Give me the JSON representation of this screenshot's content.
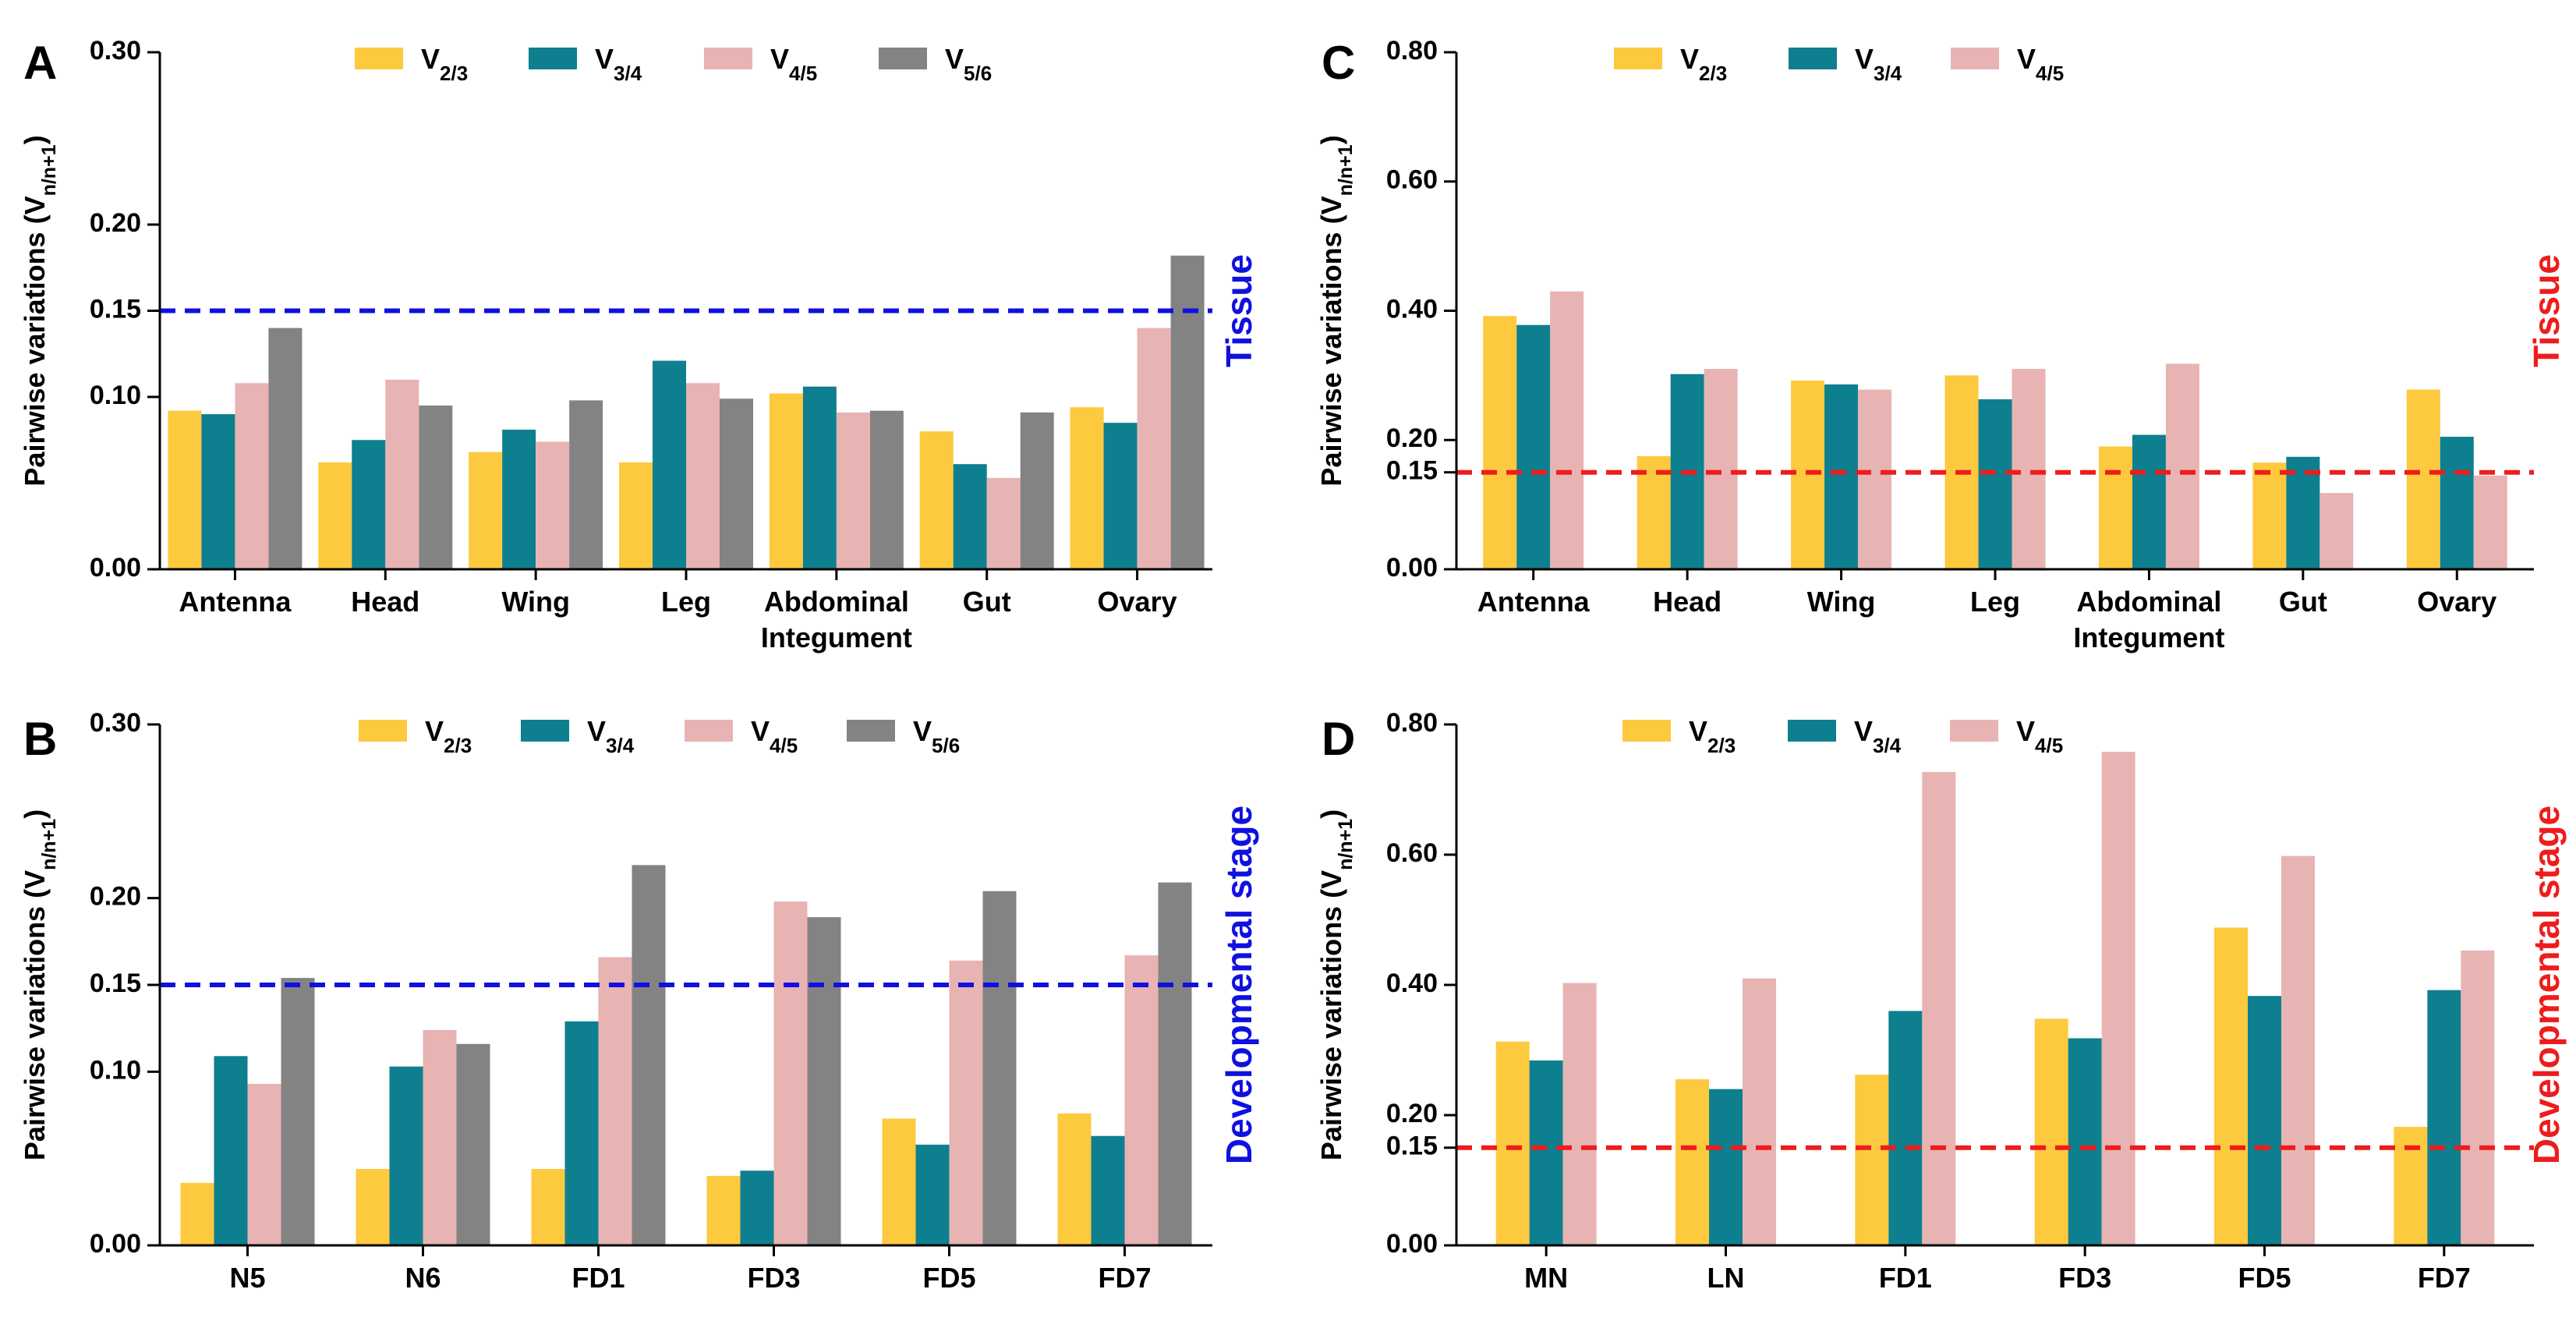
{
  "colors": {
    "V2_3": "#FDC93E",
    "V3_4": "#0E7F8F",
    "V4_5": "#E7B4B3",
    "V5_6": "#838383",
    "axis": "#000000",
    "blue_line": "#1010E0",
    "red_line": "#EE1C1C"
  },
  "series_names": {
    "V2_3": [
      "V",
      "2/3"
    ],
    "V3_4": [
      "V",
      "3/4"
    ],
    "V4_5": [
      "V",
      "4/5"
    ],
    "V5_6": [
      "V",
      "5/6"
    ]
  },
  "ylabel": [
    "Pairwise variations (V",
    "n/n+1",
    ")"
  ],
  "chart_data": [
    {
      "panel": "A",
      "type": "bar",
      "title": "",
      "right_label": "Tissue",
      "ylabel": "Pairwise variations (Vn/n+1)",
      "ylim": [
        0,
        0.3
      ],
      "yticks": [
        "0.00",
        "0.10",
        "0.15",
        "0.20",
        "0.30"
      ],
      "threshold": 0.15,
      "categories": [
        [
          "Antenna"
        ],
        [
          "Head"
        ],
        [
          "Wing"
        ],
        [
          "Leg"
        ],
        [
          "Abdominal",
          "Integument"
        ],
        [
          "Gut"
        ],
        [
          "Ovary"
        ]
      ],
      "series": [
        {
          "key": "V2_3",
          "name": "V2/3",
          "values": [
            0.092,
            0.062,
            0.068,
            0.062,
            0.102,
            0.08,
            0.094
          ]
        },
        {
          "key": "V3_4",
          "name": "V3/4",
          "values": [
            0.09,
            0.075,
            0.081,
            0.121,
            0.106,
            0.061,
            0.085
          ]
        },
        {
          "key": "V4_5",
          "name": "V4/5",
          "values": [
            0.108,
            0.11,
            0.074,
            0.108,
            0.091,
            0.053,
            0.14
          ]
        },
        {
          "key": "V5_6",
          "name": "V5/6",
          "values": [
            0.14,
            0.095,
            0.098,
            0.099,
            0.092,
            0.091,
            0.182
          ]
        }
      ]
    },
    {
      "panel": "B",
      "type": "bar",
      "title": "",
      "right_label": "Developmental stage",
      "ylabel": "Pairwise variations (Vn/n+1)",
      "ylim": [
        0,
        0.3
      ],
      "yticks": [
        "0.00",
        "0.10",
        "0.15",
        "0.20",
        "0.30"
      ],
      "threshold": 0.15,
      "categories": [
        [
          "N5"
        ],
        [
          "N6"
        ],
        [
          "FD1"
        ],
        [
          "FD3"
        ],
        [
          "FD5"
        ],
        [
          "FD7"
        ]
      ],
      "series": [
        {
          "key": "V2_3",
          "name": "V2/3",
          "values": [
            0.036,
            0.044,
            0.044,
            0.04,
            0.073,
            0.076
          ]
        },
        {
          "key": "V3_4",
          "name": "V3/4",
          "values": [
            0.109,
            0.103,
            0.129,
            0.043,
            0.058,
            0.063
          ]
        },
        {
          "key": "V4_5",
          "name": "V4/5",
          "values": [
            0.093,
            0.124,
            0.166,
            0.198,
            0.164,
            0.167
          ]
        },
        {
          "key": "V5_6",
          "name": "V5/6",
          "values": [
            0.154,
            0.116,
            0.219,
            0.189,
            0.204,
            0.209
          ]
        }
      ]
    },
    {
      "panel": "C",
      "type": "bar",
      "title": "",
      "right_label": "Tissue",
      "ylabel": "Pairwise variations (Vn/n+1)",
      "ylim": [
        0,
        0.8
      ],
      "yticks": [
        "0.00",
        "0.15",
        "0.20",
        "0.40",
        "0.60",
        "0.80"
      ],
      "threshold": 0.15,
      "categories": [
        [
          "Antenna"
        ],
        [
          "Head"
        ],
        [
          "Wing"
        ],
        [
          "Leg"
        ],
        [
          "Abdominal",
          "Integument"
        ],
        [
          "Gut"
        ],
        [
          "Ovary"
        ]
      ],
      "series": [
        {
          "key": "V2_3",
          "name": "V2/3",
          "values": [
            0.392,
            0.175,
            0.292,
            0.3,
            0.19,
            0.165,
            0.278
          ]
        },
        {
          "key": "V3_4",
          "name": "V3/4",
          "values": [
            0.378,
            0.302,
            0.286,
            0.263,
            0.208,
            0.174,
            0.205
          ]
        },
        {
          "key": "V4_5",
          "name": "V4/5",
          "values": [
            0.43,
            0.31,
            0.278,
            0.31,
            0.318,
            0.118,
            0.145
          ]
        }
      ]
    },
    {
      "panel": "D",
      "type": "bar",
      "title": "",
      "right_label": "Developmental stage",
      "ylabel": "Pairwise variations (Vn/n+1)",
      "ylim": [
        0,
        0.8
      ],
      "yticks": [
        "0.00",
        "0.15",
        "0.20",
        "0.40",
        "0.60",
        "0.80"
      ],
      "threshold": 0.15,
      "categories": [
        [
          "MN"
        ],
        [
          "LN"
        ],
        [
          "FD1"
        ],
        [
          "FD3"
        ],
        [
          "FD5"
        ],
        [
          "FD7"
        ]
      ],
      "series": [
        {
          "key": "V2_3",
          "name": "V2/3",
          "values": [
            0.313,
            0.255,
            0.262,
            0.348,
            0.488,
            0.182
          ]
        },
        {
          "key": "V3_4",
          "name": "V3/4",
          "values": [
            0.284,
            0.24,
            0.36,
            0.318,
            0.383,
            0.392
          ]
        },
        {
          "key": "V4_5",
          "name": "V4/5",
          "values": [
            0.403,
            0.41,
            0.727,
            0.758,
            0.598,
            0.453
          ]
        }
      ]
    }
  ]
}
